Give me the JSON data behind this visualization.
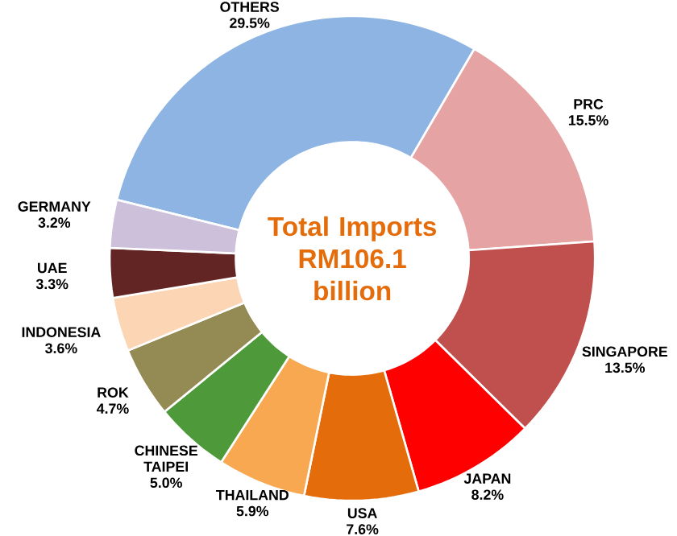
{
  "chart_data": {
    "type": "donut",
    "title": "Total Imports RM106.1 billion",
    "categories": [
      "OTHERS",
      "PRC",
      "SINGAPORE",
      "JAPAN",
      "USA",
      "THAILAND",
      "CHINESE TAIPEI",
      "ROK",
      "INDONESIA",
      "UAE",
      "GERMANY"
    ],
    "values": [
      29.5,
      15.5,
      13.5,
      8.2,
      7.6,
      5.9,
      5.0,
      4.7,
      3.6,
      3.3,
      3.2
    ],
    "value_labels": [
      "29.5%",
      "15.5%",
      "13.5%",
      "8.2%",
      "7.6%",
      "5.9%",
      "5.0%",
      "4.7%",
      "3.6%",
      "3.3%",
      "3.2%"
    ],
    "colors": [
      "#8db4e2",
      "#e6a3a3",
      "#c0504d",
      "#ff0000",
      "#e46c0a",
      "#f9a852",
      "#4e9a3a",
      "#948a54",
      "#fcd5b4",
      "#632523",
      "#ccc0da"
    ]
  }
}
